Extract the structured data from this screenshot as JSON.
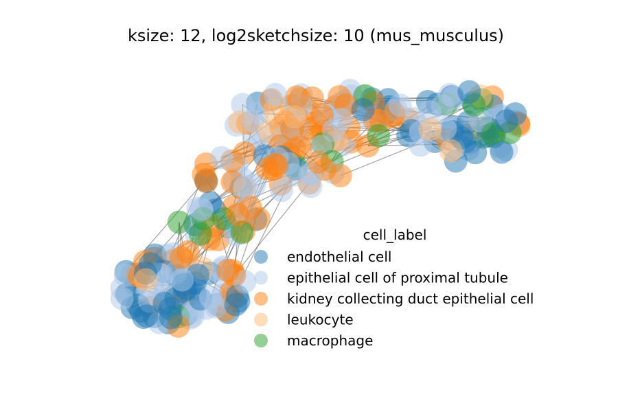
{
  "chart_data": {
    "type": "scatter",
    "title": "ksize: 12, log2sketchsize: 10 (mus_musculus)",
    "xlabel": "",
    "ylabel": "",
    "axes_visible": false,
    "grid": false,
    "legend_placement": "lower-right",
    "legend_title": "cell_label",
    "edge_color": "#555555",
    "series": [
      {
        "name": "endothelial cell",
        "color": "#1f77b4",
        "alpha": 0.5
      },
      {
        "name": "epithelial cell of proximal tubule",
        "color": "#aec7e8",
        "alpha": 0.5
      },
      {
        "name": "kidney collecting duct epithelial cell",
        "color": "#ff7f0e",
        "alpha": 0.5
      },
      {
        "name": "leukocyte",
        "color": "#ffbb78",
        "alpha": 0.5
      },
      {
        "name": "macrophage",
        "color": "#2ca02c",
        "alpha": 0.5
      }
    ]
  }
}
